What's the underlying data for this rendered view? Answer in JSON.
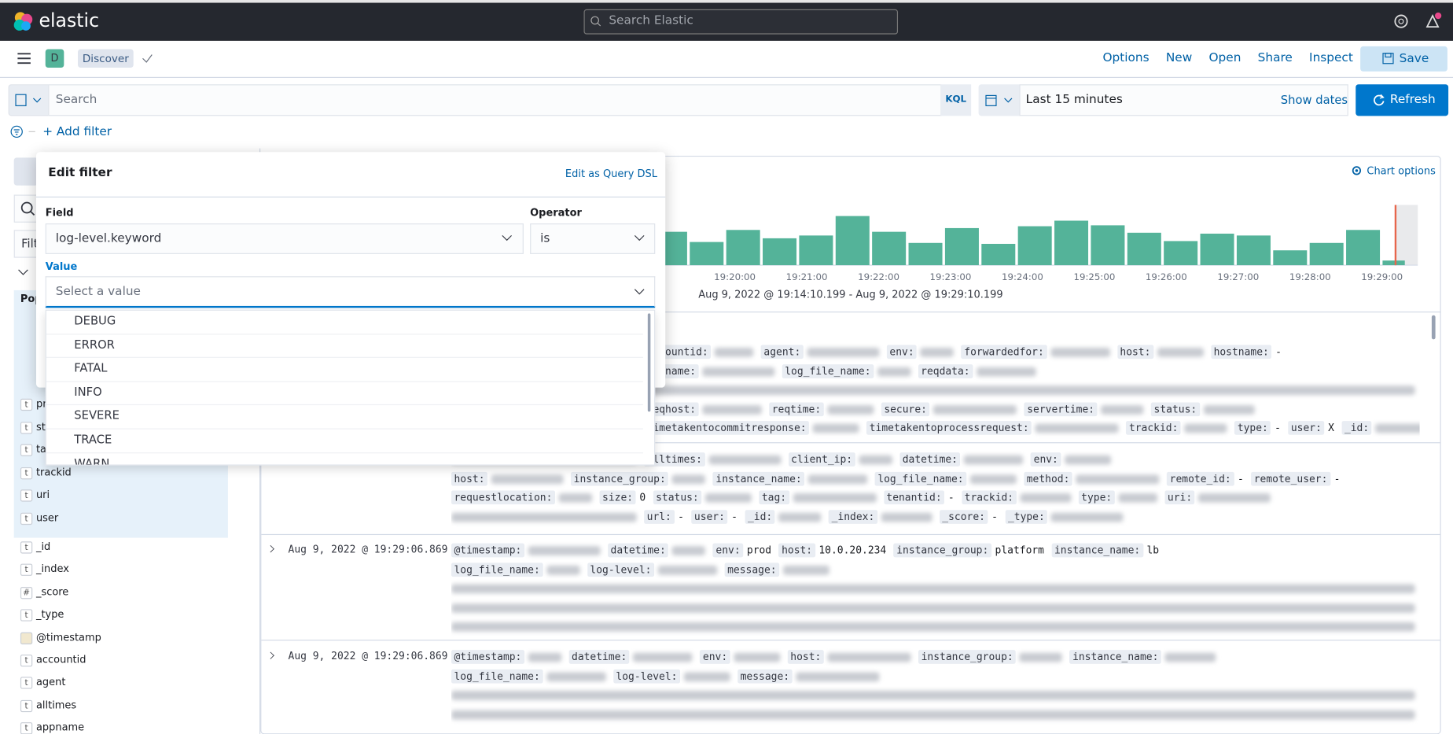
{
  "header": {
    "logo": "elastic",
    "search_placeholder": "Search Elastic"
  },
  "app_bar": {
    "space": "D",
    "app": "Discover",
    "menu": [
      "Options",
      "New",
      "Open",
      "Share",
      "Inspect"
    ],
    "save": "Save"
  },
  "query_bar": {
    "placeholder": "Search",
    "language": "KQL",
    "time_range": "Last 15 minutes",
    "show_dates": "Show dates",
    "refresh": "Refresh"
  },
  "filter_bar": {
    "add_filter": "+ Add filter"
  },
  "edit_filter": {
    "title": "Edit filter",
    "edit_dsl": "Edit as Query DSL",
    "field_label": "Field",
    "field_value": "log-level.keyword",
    "operator_label": "Operator",
    "operator_value": "is",
    "value_label": "Value",
    "value_placeholder": "Select a value",
    "options": [
      "DEBUG",
      "ERROR",
      "FATAL",
      "INFO",
      "SEVERE",
      "TRACE",
      "WARN"
    ]
  },
  "sidebar": {
    "filter_partial": "Filt",
    "popular_partial": "Pop",
    "popular": [
      {
        "icon": "t",
        "name": "pr"
      },
      {
        "icon": "t",
        "name": "sta"
      },
      {
        "icon": "t",
        "name": "ta"
      },
      {
        "icon": "t",
        "name": "trackid"
      },
      {
        "icon": "t",
        "name": "uri"
      },
      {
        "icon": "t",
        "name": "user"
      }
    ],
    "available": [
      {
        "icon": "t",
        "name": "_id"
      },
      {
        "icon": "t",
        "name": "_index"
      },
      {
        "icon": "#",
        "name": "_score"
      },
      {
        "icon": "t",
        "name": "_type"
      },
      {
        "name": "@timestamp"
      },
      {
        "icon": "t",
        "name": "accountid"
      },
      {
        "icon": "t",
        "name": "agent"
      },
      {
        "icon": "t",
        "name": "alltimes"
      },
      {
        "icon": "t",
        "name": "appname"
      }
    ]
  },
  "histogram": {
    "chart_options": "Chart options",
    "x_labels": [
      "19:20:00",
      "19:21:00",
      "19:22:00",
      "19:23:00",
      "19:24:00",
      "19:25:00",
      "19:26:00",
      "19:27:00",
      "19:28:00",
      "19:29:00"
    ],
    "time_range": "Aug 9, 2022 @ 19:14:10.199 - Aug 9, 2022 @ 19:29:10.199",
    "bar_counts": [
      36,
      25,
      38,
      29,
      32,
      53,
      36,
      24,
      40,
      23,
      42,
      48,
      43,
      35,
      26,
      34,
      32,
      16,
      24,
      38,
      5
    ]
  },
  "documents": [
    {
      "lines": [
        [
          [
            null,
            null
          ],
          [
            "accountid:",
            null
          ],
          [
            "agent:",
            null
          ],
          [
            "env:",
            null
          ],
          [
            "forwardedfor:",
            null
          ],
          [
            "host:",
            null
          ],
          [
            "hostname:",
            "-"
          ]
        ],
        [
          [
            null,
            null
          ],
          [
            "ce_name:",
            null
          ],
          [
            "log_file_name:",
            null
          ],
          [
            "reqdata:",
            null
          ]
        ],
        [],
        [
          [
            null,
            null
          ],
          [
            "reqhost:",
            null
          ],
          [
            "reqtime:",
            null
          ],
          [
            "secure:",
            null
          ],
          [
            "servertime:",
            null
          ],
          [
            "status:",
            null
          ]
        ],
        [
          [
            null,
            null
          ],
          [
            "timetakentocommitresponse:",
            null
          ],
          [
            "timetakentoprocessrequest:",
            null
          ],
          [
            "trackid:",
            null
          ],
          [
            "type:",
            "-"
          ],
          [
            "user:",
            "X"
          ],
          [
            "_id:",
            null
          ],
          [
            "_index:",
            null
          ]
        ]
      ]
    },
    {
      "lines": [
        [
          [
            null,
            null
          ],
          [
            "alltimes:",
            null
          ],
          [
            "client_ip:",
            null
          ],
          [
            "datetime:",
            null
          ],
          [
            "env:",
            null
          ]
        ],
        [
          [
            "host:",
            null
          ],
          [
            "instance_group:",
            null
          ],
          [
            "instance_name:",
            null
          ],
          [
            "log_file_name:",
            null
          ],
          [
            "method:",
            null
          ],
          [
            "remote_id:",
            "-"
          ],
          [
            "remote_user:",
            "-"
          ]
        ],
        [
          [
            "requestlocation:",
            null
          ],
          [
            "size:",
            "0"
          ],
          [
            "status:",
            null
          ],
          [
            "tag:",
            null
          ],
          [
            "tenantid:",
            "-"
          ],
          [
            "trackid:",
            null
          ],
          [
            "type:",
            null
          ],
          [
            "uri:",
            null
          ]
        ],
        [
          [
            null,
            null
          ],
          [
            "url:",
            "-"
          ],
          [
            "user:",
            "-"
          ],
          [
            "_id:",
            null
          ],
          [
            "_index:",
            null
          ],
          [
            "_score:",
            "-"
          ],
          [
            "_type:",
            null
          ]
        ]
      ]
    },
    {
      "timestamp": "Aug 9, 2022 @ 19:29:06.869",
      "lines": [
        [
          [
            "@timestamp:",
            null
          ],
          [
            "datetime:",
            null
          ],
          [
            "env:",
            "prod"
          ],
          [
            "host:",
            "10.0.20.234"
          ],
          [
            "instance_group:",
            "platform"
          ],
          [
            "instance_name:",
            "lb"
          ]
        ],
        [
          [
            "log_file_name:",
            null
          ],
          [
            "log-level:",
            null
          ],
          [
            "message:",
            null
          ]
        ],
        [],
        [],
        []
      ]
    },
    {
      "timestamp": "Aug 9, 2022 @ 19:29:06.869",
      "lines": [
        [
          [
            "@timestamp:",
            null
          ],
          [
            "datetime:",
            null
          ],
          [
            "env:",
            null
          ],
          [
            "host:",
            null
          ],
          [
            "instance_group:",
            null
          ],
          [
            "instance_name:",
            null
          ]
        ],
        [
          [
            "log_file_name:",
            null
          ],
          [
            "log-level:",
            null
          ],
          [
            "message:",
            null
          ]
        ],
        [],
        []
      ]
    }
  ]
}
